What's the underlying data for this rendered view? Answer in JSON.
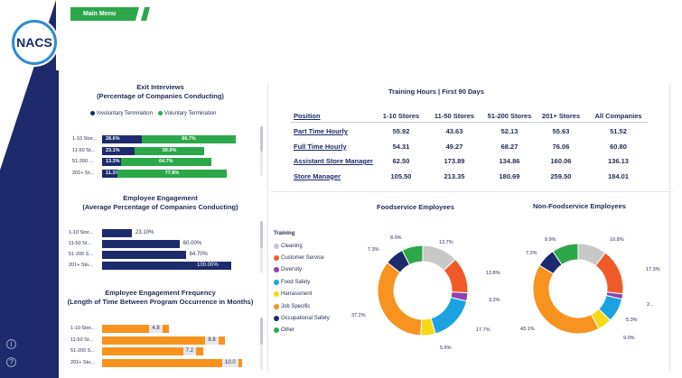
{
  "app": {
    "logo_text": "NACS",
    "main_menu_label": "Main Menu"
  },
  "colors": {
    "navy": "#1d2a6b",
    "green": "#2ca84a",
    "orange": "#f7931e"
  },
  "exit_interviews": {
    "title": "Exit Interviews",
    "subtitle": "(Percentage of Companies Conducting)",
    "legend": [
      "Involuntary Termination",
      "Voluntary Termination"
    ],
    "rows": [
      {
        "label": "1-10 Stor...",
        "inv": "28.6%",
        "vol": "66.7%",
        "inv_val": 28.6,
        "vol_val": 66.7
      },
      {
        "label": "11-50 St...",
        "inv": "23.1%",
        "vol": "50.0%",
        "inv_val": 23.1,
        "vol_val": 50.0
      },
      {
        "label": "51-200 ...",
        "inv": "13.3%",
        "vol": "64.7%",
        "inv_val": 13.3,
        "vol_val": 64.7
      },
      {
        "label": "201+ St...",
        "inv": "11.1%",
        "vol": "77.8%",
        "inv_val": 11.1,
        "vol_val": 77.8
      }
    ]
  },
  "engagement": {
    "title": "Employee Engagement",
    "subtitle": "(Average Percentage of Companies Conducting)",
    "rows": [
      {
        "label": "1-10 Stor...",
        "value": "23.10%",
        "num": 23.1
      },
      {
        "label": "11-50 St...",
        "value": "60.00%",
        "num": 60.0
      },
      {
        "label": "51-200 S...",
        "value": "64.70%",
        "num": 64.7
      },
      {
        "label": "201+ Sto...",
        "value": "100.00%",
        "num": 100.0
      }
    ]
  },
  "frequency": {
    "title": "Employee Engagement Frequency",
    "subtitle": "(Length of Time Between Program Occurrence in Months)",
    "rows": [
      {
        "label": "1-10 Stor...",
        "value": "4.8",
        "num": 4.8
      },
      {
        "label": "11-50 St...",
        "value": "8.8",
        "num": 8.8
      },
      {
        "label": "51-200 S...",
        "value": "7.2",
        "num": 7.2
      },
      {
        "label": "201+ Sto...",
        "value": "10.0",
        "num": 10.0
      }
    ]
  },
  "training_table": {
    "title": "Training Hours | First 90 Days",
    "headers": [
      "Position",
      "1-10 Stores",
      "11-50 Stores",
      "51-200 Stores",
      "201+ Stores",
      "All Companies"
    ],
    "rows": [
      {
        "position": "Part Time Hourly",
        "values": [
          "55.92",
          "43.63",
          "52.13",
          "55.63",
          "51.52"
        ]
      },
      {
        "position": "Full Time Hourly",
        "values": [
          "54.31",
          "49.27",
          "68.27",
          "76.06",
          "60.80"
        ]
      },
      {
        "position": "Assistant Store Manager",
        "values": [
          "62.50",
          "173.89",
          "134.86",
          "160.06",
          "136.13"
        ]
      },
      {
        "position": "Store Manager",
        "values": [
          "105.50",
          "213.35",
          "180.69",
          "259.50",
          "184.01"
        ]
      }
    ]
  },
  "training_legend": {
    "title": "Training",
    "items": [
      {
        "label": "Cleaning",
        "color": "#c8c8c8"
      },
      {
        "label": "Customer Service",
        "color": "#f05a28"
      },
      {
        "label": "Diversity",
        "color": "#8e44ad"
      },
      {
        "label": "Food Safety",
        "color": "#1aa3e0"
      },
      {
        "label": "Harrassment",
        "color": "#f7d917"
      },
      {
        "label": "Job Specific",
        "color": "#f7931e"
      },
      {
        "label": "Occupational Safety",
        "color": "#1d2a6b"
      },
      {
        "label": "Other",
        "color": "#2ca84a"
      }
    ]
  },
  "chart_data": [
    {
      "type": "pie",
      "title": "Foodservice Employees",
      "categories": [
        "Cleaning",
        "Customer Service",
        "Diversity",
        "Food Safety",
        "Harrassment",
        "Job Specific",
        "Occupational Safety",
        "Other"
      ],
      "values": [
        13.7,
        13.8,
        3.2,
        17.7,
        5.6,
        37.2,
        7.3,
        8.0
      ],
      "labels": [
        "13.7%",
        "13.8%",
        "3.2%",
        "17.7%",
        "5.6%",
        "37.2%",
        "7.3%",
        "8.0%"
      ]
    },
    {
      "type": "pie",
      "title": "Non-Foodservice Employees",
      "categories": [
        "Cleaning",
        "Customer Service",
        "Diversity",
        "Food Safety",
        "Harrassment",
        "Job Specific",
        "Occupational Safety",
        "Other"
      ],
      "values": [
        10.8,
        17.3,
        2.0,
        9.0,
        5.3,
        43.1,
        7.2,
        9.9
      ],
      "labels": [
        "10.8%",
        "17.3%",
        "2...",
        "9.0%",
        "5.3%",
        "43.1%",
        "7.2%",
        "9.9%"
      ]
    }
  ]
}
